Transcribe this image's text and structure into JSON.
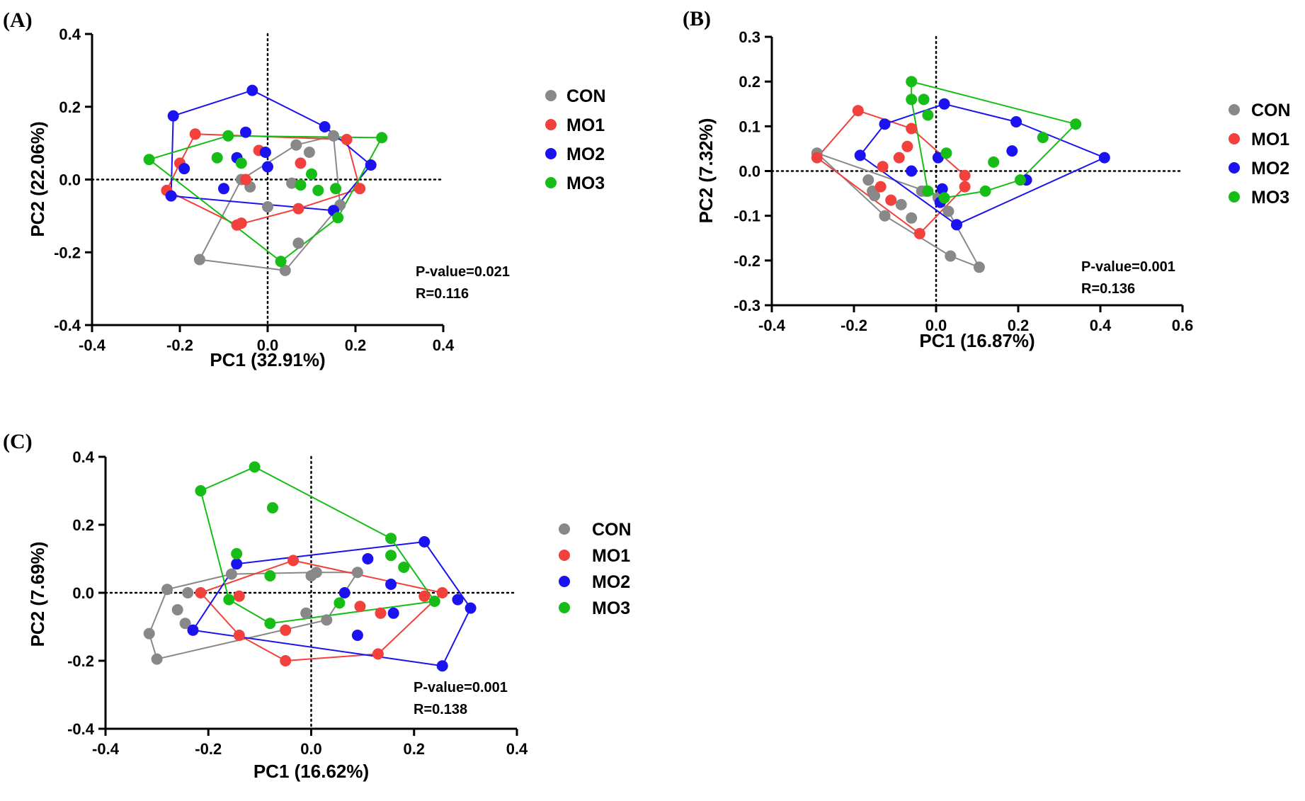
{
  "colors": {
    "CON": "#888888",
    "MO1": "#f2403c",
    "MO2": "#1a12f0",
    "MO3": "#16bd16"
  },
  "chart_data": [
    {
      "type": "scatter",
      "panel_label": "(A)",
      "xlabel": "PC1 (32.91%)",
      "ylabel": "PC2 (22.06%)",
      "xlim": [
        -0.4,
        0.4
      ],
      "ylim": [
        -0.4,
        0.4
      ],
      "xticks": [
        "-0.4",
        "-0.2",
        "0.0",
        "0.2",
        "0.4"
      ],
      "yticks": [
        "-0.4",
        "-0.2",
        "0.0",
        "0.2",
        "0.4"
      ],
      "pvalue": "P-value=0.021",
      "r": "R=0.116",
      "grid": false,
      "legend_position": "right",
      "series": [
        {
          "name": "CON",
          "hull": true,
          "points": [
            [
              -0.155,
              -0.22
            ],
            [
              0.04,
              -0.25
            ],
            [
              0.15,
              0.12
            ],
            [
              0.165,
              -0.07
            ],
            [
              0.065,
              0.095
            ],
            [
              0.095,
              0.075
            ],
            [
              -0.06,
              0.0
            ],
            [
              -0.04,
              -0.02
            ],
            [
              0.0,
              -0.075
            ],
            [
              0.055,
              -0.01
            ],
            [
              0.07,
              -0.175
            ]
          ]
        },
        {
          "name": "MO1",
          "hull": true,
          "points": [
            [
              -0.23,
              -0.03
            ],
            [
              -0.2,
              0.045
            ],
            [
              -0.165,
              0.125
            ],
            [
              0.18,
              0.11
            ],
            [
              0.21,
              -0.025
            ],
            [
              0.075,
              0.045
            ],
            [
              0.07,
              -0.08
            ],
            [
              -0.02,
              0.08
            ],
            [
              -0.05,
              0.0
            ],
            [
              -0.06,
              -0.12
            ],
            [
              -0.07,
              -0.125
            ]
          ]
        },
        {
          "name": "MO2",
          "hull": true,
          "points": [
            [
              -0.22,
              -0.045
            ],
            [
              -0.215,
              0.175
            ],
            [
              -0.035,
              0.245
            ],
            [
              0.13,
              0.145
            ],
            [
              0.235,
              0.04
            ],
            [
              0.15,
              -0.085
            ],
            [
              -0.19,
              0.03
            ],
            [
              -0.07,
              0.06
            ],
            [
              -0.05,
              0.13
            ],
            [
              -0.005,
              0.075
            ],
            [
              0.0,
              0.035
            ],
            [
              -0.1,
              -0.025
            ]
          ]
        },
        {
          "name": "MO3",
          "hull": true,
          "points": [
            [
              -0.27,
              0.055
            ],
            [
              0.26,
              0.115
            ],
            [
              0.16,
              -0.105
            ],
            [
              0.03,
              -0.225
            ],
            [
              -0.09,
              0.12
            ],
            [
              -0.115,
              0.06
            ],
            [
              -0.06,
              0.045
            ],
            [
              0.075,
              -0.015
            ],
            [
              0.1,
              0.015
            ],
            [
              0.115,
              -0.03
            ],
            [
              0.155,
              -0.025
            ]
          ]
        }
      ]
    },
    {
      "type": "scatter",
      "panel_label": "(B)",
      "xlabel": "PC1 (16.87%)",
      "ylabel": "PC2 (7.32%)",
      "xlim": [
        -0.4,
        0.6
      ],
      "ylim": [
        -0.3,
        0.3
      ],
      "xticks": [
        "-0.4",
        "-0.2",
        "0.0",
        "0.2",
        "0.4",
        "0.6"
      ],
      "yticks": [
        "-0.3",
        "-0.2",
        "-0.1",
        "0.0",
        "0.1",
        "0.2",
        "0.3"
      ],
      "pvalue": "P-value=0.001",
      "r": "R=0.136",
      "grid": false,
      "legend_position": "right",
      "series": [
        {
          "name": "CON",
          "hull": true,
          "points": [
            [
              -0.29,
              0.04
            ],
            [
              0.105,
              -0.215
            ],
            [
              0.035,
              -0.19
            ],
            [
              -0.165,
              -0.02
            ],
            [
              -0.155,
              -0.045
            ],
            [
              -0.15,
              -0.055
            ],
            [
              -0.125,
              -0.1
            ],
            [
              -0.085,
              -0.075
            ],
            [
              -0.06,
              -0.105
            ],
            [
              -0.035,
              -0.045
            ],
            [
              -0.025,
              -0.045
            ],
            [
              0.005,
              -0.06
            ],
            [
              0.03,
              -0.09
            ]
          ]
        },
        {
          "name": "MO1",
          "hull": true,
          "points": [
            [
              -0.29,
              0.03
            ],
            [
              -0.19,
              0.135
            ],
            [
              -0.04,
              -0.14
            ],
            [
              0.07,
              -0.01
            ],
            [
              0.07,
              -0.035
            ],
            [
              -0.06,
              0.095
            ],
            [
              -0.07,
              0.055
            ],
            [
              -0.09,
              0.03
            ],
            [
              -0.13,
              0.01
            ],
            [
              -0.11,
              -0.065
            ],
            [
              -0.135,
              -0.035
            ]
          ]
        },
        {
          "name": "MO2",
          "hull": true,
          "points": [
            [
              -0.185,
              0.035
            ],
            [
              -0.125,
              0.105
            ],
            [
              0.02,
              0.15
            ],
            [
              0.195,
              0.11
            ],
            [
              0.41,
              0.03
            ],
            [
              0.05,
              -0.12
            ],
            [
              0.01,
              -0.07
            ],
            [
              0.015,
              -0.04
            ],
            [
              0.22,
              -0.02
            ],
            [
              0.185,
              0.045
            ],
            [
              0.005,
              0.03
            ],
            [
              -0.06,
              0.0
            ]
          ]
        },
        {
          "name": "MO3",
          "hull": true,
          "points": [
            [
              -0.06,
              0.2
            ],
            [
              0.34,
              0.105
            ],
            [
              0.205,
              -0.02
            ],
            [
              0.12,
              -0.045
            ],
            [
              0.02,
              -0.06
            ],
            [
              -0.02,
              -0.045
            ],
            [
              -0.06,
              0.16
            ],
            [
              -0.03,
              0.16
            ],
            [
              -0.02,
              0.125
            ],
            [
              0.025,
              0.04
            ],
            [
              0.14,
              0.02
            ],
            [
              0.26,
              0.075
            ]
          ]
        }
      ]
    },
    {
      "type": "scatter",
      "panel_label": "(C)",
      "xlabel": "PC1 (16.62%)",
      "ylabel": "PC2 (7.69%)",
      "xlim": [
        -0.4,
        0.4
      ],
      "ylim": [
        -0.4,
        0.4
      ],
      "xticks": [
        "-0.4",
        "-0.2",
        "0.0",
        "0.2",
        "0.4"
      ],
      "yticks": [
        "-0.4",
        "-0.2",
        "0.0",
        "0.2",
        "0.4"
      ],
      "pvalue": "P-value=0.001",
      "r": "R=0.138",
      "grid": false,
      "legend_position": "right",
      "series": [
        {
          "name": "CON",
          "hull": true,
          "points": [
            [
              -0.315,
              -0.12
            ],
            [
              -0.3,
              -0.195
            ],
            [
              -0.28,
              0.01
            ],
            [
              -0.155,
              0.055
            ],
            [
              0.09,
              0.06
            ],
            [
              0.03,
              -0.08
            ],
            [
              -0.24,
              0.0
            ],
            [
              -0.26,
              -0.05
            ],
            [
              -0.245,
              -0.09
            ],
            [
              0.0,
              0.05
            ],
            [
              0.01,
              0.06
            ],
            [
              -0.01,
              -0.06
            ]
          ]
        },
        {
          "name": "MO1",
          "hull": true,
          "points": [
            [
              -0.215,
              0.0
            ],
            [
              -0.14,
              -0.125
            ],
            [
              -0.05,
              -0.2
            ],
            [
              0.13,
              -0.18
            ],
            [
              0.255,
              0.0
            ],
            [
              -0.035,
              0.095
            ],
            [
              -0.14,
              -0.01
            ],
            [
              -0.05,
              -0.11
            ],
            [
              0.095,
              -0.04
            ],
            [
              0.135,
              -0.06
            ],
            [
              0.22,
              -0.01
            ]
          ]
        },
        {
          "name": "MO2",
          "hull": true,
          "points": [
            [
              -0.23,
              -0.11
            ],
            [
              -0.145,
              0.085
            ],
            [
              0.22,
              0.15
            ],
            [
              0.31,
              -0.045
            ],
            [
              0.255,
              -0.215
            ],
            [
              0.065,
              0.0
            ],
            [
              0.09,
              -0.125
            ],
            [
              0.11,
              0.1
            ],
            [
              0.155,
              0.025
            ],
            [
              0.16,
              -0.06
            ],
            [
              0.285,
              -0.02
            ]
          ]
        },
        {
          "name": "MO3",
          "hull": true,
          "points": [
            [
              -0.215,
              0.3
            ],
            [
              -0.11,
              0.37
            ],
            [
              0.155,
              0.16
            ],
            [
              0.24,
              -0.025
            ],
            [
              -0.08,
              -0.09
            ],
            [
              -0.16,
              -0.02
            ],
            [
              -0.145,
              0.115
            ],
            [
              -0.075,
              0.25
            ],
            [
              -0.08,
              0.05
            ],
            [
              0.055,
              -0.03
            ],
            [
              0.155,
              0.11
            ],
            [
              0.18,
              0.075
            ]
          ]
        }
      ]
    }
  ]
}
